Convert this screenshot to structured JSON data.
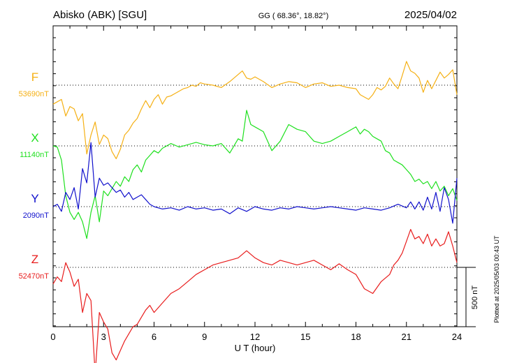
{
  "header": {
    "station": "Abisko (ABK)  [SGU]",
    "coords": "GG ( 68.36°,  18.82°)",
    "date": "2025/04/02"
  },
  "side_note": "Plotted at 2025/05/03 00:43 UT",
  "scale_label": "500 nT",
  "chart_data": {
    "type": "line",
    "xlabel": "U T (hour)",
    "xlim": [
      0,
      24
    ],
    "xticks": [
      0,
      3,
      6,
      9,
      12,
      15,
      18,
      21,
      24
    ],
    "xtick_labels": [
      "0",
      "3",
      "6",
      "9",
      "12",
      "15",
      "18",
      "21",
      "24"
    ],
    "series": [
      {
        "name": "F",
        "baseline_label": "53690nT",
        "color": "#f5b014",
        "x": [
          0,
          0.25,
          0.5,
          0.75,
          1,
          1.25,
          1.5,
          1.75,
          2,
          2.25,
          2.5,
          2.75,
          3,
          3.25,
          3.5,
          3.75,
          4,
          4.25,
          4.5,
          4.75,
          5,
          5.25,
          5.5,
          5.75,
          6,
          6.25,
          6.5,
          6.75,
          7,
          7.25,
          7.5,
          7.75,
          8,
          8.25,
          8.5,
          8.75,
          9,
          9.5,
          10,
          10.5,
          11,
          11.25,
          11.5,
          11.75,
          12,
          12.5,
          13,
          13.5,
          14,
          14.5,
          15,
          15.5,
          16,
          16.5,
          17,
          17.5,
          18,
          18.25,
          18.5,
          18.75,
          19,
          19.25,
          19.5,
          19.75,
          20,
          20.25,
          20.5,
          20.75,
          21,
          21.25,
          21.5,
          21.75,
          22,
          22.25,
          22.5,
          22.75,
          23,
          23.25,
          23.5,
          23.75,
          24
        ],
        "values": [
          -160,
          -140,
          -120,
          -260,
          -180,
          -200,
          -300,
          -240,
          -580,
          -420,
          -310,
          -500,
          -420,
          -450,
          -560,
          -620,
          -540,
          -420,
          -380,
          -320,
          -280,
          -200,
          -130,
          -190,
          -120,
          -80,
          -160,
          -100,
          -90,
          -70,
          -50,
          -30,
          -20,
          0,
          -10,
          20,
          10,
          0,
          -20,
          30,
          90,
          120,
          60,
          50,
          70,
          30,
          -20,
          10,
          30,
          20,
          -20,
          10,
          20,
          -10,
          0,
          -20,
          -30,
          -80,
          -100,
          -120,
          -80,
          -20,
          -40,
          -10,
          60,
          10,
          -30,
          80,
          200,
          120,
          100,
          60,
          -60,
          40,
          -30,
          40,
          110,
          60,
          90,
          130,
          -80
        ]
      },
      {
        "name": "X",
        "baseline_label": "11140nT",
        "color": "#1ee01e",
        "x": [
          0,
          0.25,
          0.5,
          0.75,
          1,
          1.25,
          1.5,
          1.75,
          2,
          2.25,
          2.5,
          2.75,
          3,
          3.25,
          3.5,
          3.75,
          4,
          4.25,
          4.5,
          4.75,
          5,
          5.25,
          5.5,
          5.75,
          6,
          6.25,
          6.5,
          6.75,
          7,
          7.5,
          8,
          8.5,
          9,
          9.5,
          10,
          10.5,
          11,
          11.25,
          11.5,
          11.75,
          12,
          12.5,
          13,
          13.5,
          14,
          14.5,
          15,
          15.5,
          16,
          16.5,
          17,
          17.5,
          18,
          18.25,
          18.5,
          18.75,
          19,
          19.25,
          19.5,
          19.75,
          20,
          20.25,
          20.5,
          20.75,
          21,
          21.25,
          21.5,
          21.75,
          22,
          22.25,
          22.5,
          22.75,
          23,
          23.25,
          23.5,
          23.75,
          24
        ],
        "values": [
          0,
          -10,
          -120,
          -420,
          -560,
          -620,
          -560,
          -640,
          -780,
          -560,
          -420,
          -640,
          -380,
          -420,
          -360,
          -300,
          -340,
          -260,
          -300,
          -200,
          -160,
          -220,
          -120,
          -80,
          -40,
          -60,
          -20,
          0,
          20,
          -10,
          10,
          30,
          10,
          0,
          20,
          -60,
          60,
          40,
          300,
          180,
          160,
          120,
          -40,
          40,
          180,
          140,
          120,
          40,
          20,
          40,
          80,
          120,
          160,
          100,
          140,
          120,
          80,
          60,
          40,
          -40,
          -60,
          -120,
          -140,
          -160,
          -200,
          -240,
          -300,
          -280,
          -320,
          -300,
          -360,
          -300,
          -380,
          -340,
          -420,
          -360,
          -460
        ]
      },
      {
        "name": "Y",
        "baseline_label": "2090nT",
        "color": "#1010cc",
        "x": [
          0,
          0.25,
          0.5,
          0.75,
          1,
          1.25,
          1.5,
          1.75,
          2,
          2.25,
          2.5,
          2.75,
          3,
          3.25,
          3.5,
          3.75,
          4,
          4.25,
          4.5,
          4.75,
          5,
          5.25,
          5.5,
          5.75,
          6,
          6.5,
          7,
          7.5,
          8,
          8.5,
          9,
          9.5,
          10,
          10.5,
          11,
          11.5,
          12,
          12.5,
          13,
          13.5,
          14,
          14.5,
          15,
          15.5,
          16,
          16.5,
          17,
          17.5,
          18,
          18.5,
          19,
          19.5,
          20,
          20.5,
          21,
          21.25,
          21.5,
          21.75,
          22,
          22.25,
          22.5,
          22.75,
          23,
          23.25,
          23.5,
          23.75,
          24
        ],
        "values": [
          0,
          20,
          -40,
          120,
          60,
          160,
          -20,
          320,
          200,
          540,
          80,
          240,
          180,
          200,
          160,
          120,
          140,
          80,
          120,
          60,
          80,
          100,
          60,
          20,
          0,
          -20,
          -10,
          -30,
          0,
          -20,
          -10,
          -30,
          -20,
          -60,
          -10,
          -40,
          0,
          -20,
          -30,
          -10,
          -20,
          0,
          -10,
          -20,
          -10,
          0,
          -10,
          -20,
          -30,
          -10,
          -20,
          -30,
          -10,
          20,
          -10,
          40,
          -20,
          40,
          -30,
          80,
          -20,
          120,
          -40,
          160,
          60,
          -140,
          240
        ]
      },
      {
        "name": "Z",
        "baseline_label": "52470nT",
        "color": "#e81c1c",
        "x": [
          0,
          0.25,
          0.5,
          0.75,
          1,
          1.25,
          1.5,
          1.75,
          2,
          2.25,
          2.5,
          2.75,
          3,
          3.25,
          3.5,
          3.75,
          4,
          4.25,
          4.5,
          4.75,
          5,
          5.25,
          5.5,
          5.75,
          6,
          6.5,
          7,
          7.5,
          8,
          8.5,
          9,
          9.5,
          10,
          10.5,
          11,
          11.5,
          12,
          12.5,
          13,
          13.5,
          14,
          14.5,
          15,
          15.5,
          16,
          16.5,
          17,
          17.5,
          18,
          18.5,
          19,
          19.5,
          20,
          20.25,
          20.5,
          20.75,
          21,
          21.25,
          21.5,
          21.75,
          22,
          22.25,
          22.5,
          22.75,
          23,
          23.25,
          23.5,
          23.75,
          24
        ],
        "values": [
          -140,
          -80,
          -120,
          40,
          -40,
          -160,
          -100,
          -380,
          -220,
          -280,
          -900,
          -380,
          -460,
          -520,
          -720,
          -780,
          -700,
          -620,
          -560,
          -500,
          -480,
          -420,
          -360,
          -320,
          -380,
          -300,
          -220,
          -180,
          -120,
          -60,
          -20,
          20,
          40,
          60,
          80,
          140,
          80,
          40,
          20,
          60,
          40,
          20,
          40,
          60,
          20,
          -20,
          30,
          -20,
          -60,
          -180,
          -220,
          -120,
          -60,
          20,
          60,
          120,
          220,
          320,
          240,
          260,
          200,
          280,
          180,
          240,
          180,
          200,
          300,
          180,
          40
        ]
      }
    ],
    "grid": "dotted baselines per component"
  }
}
